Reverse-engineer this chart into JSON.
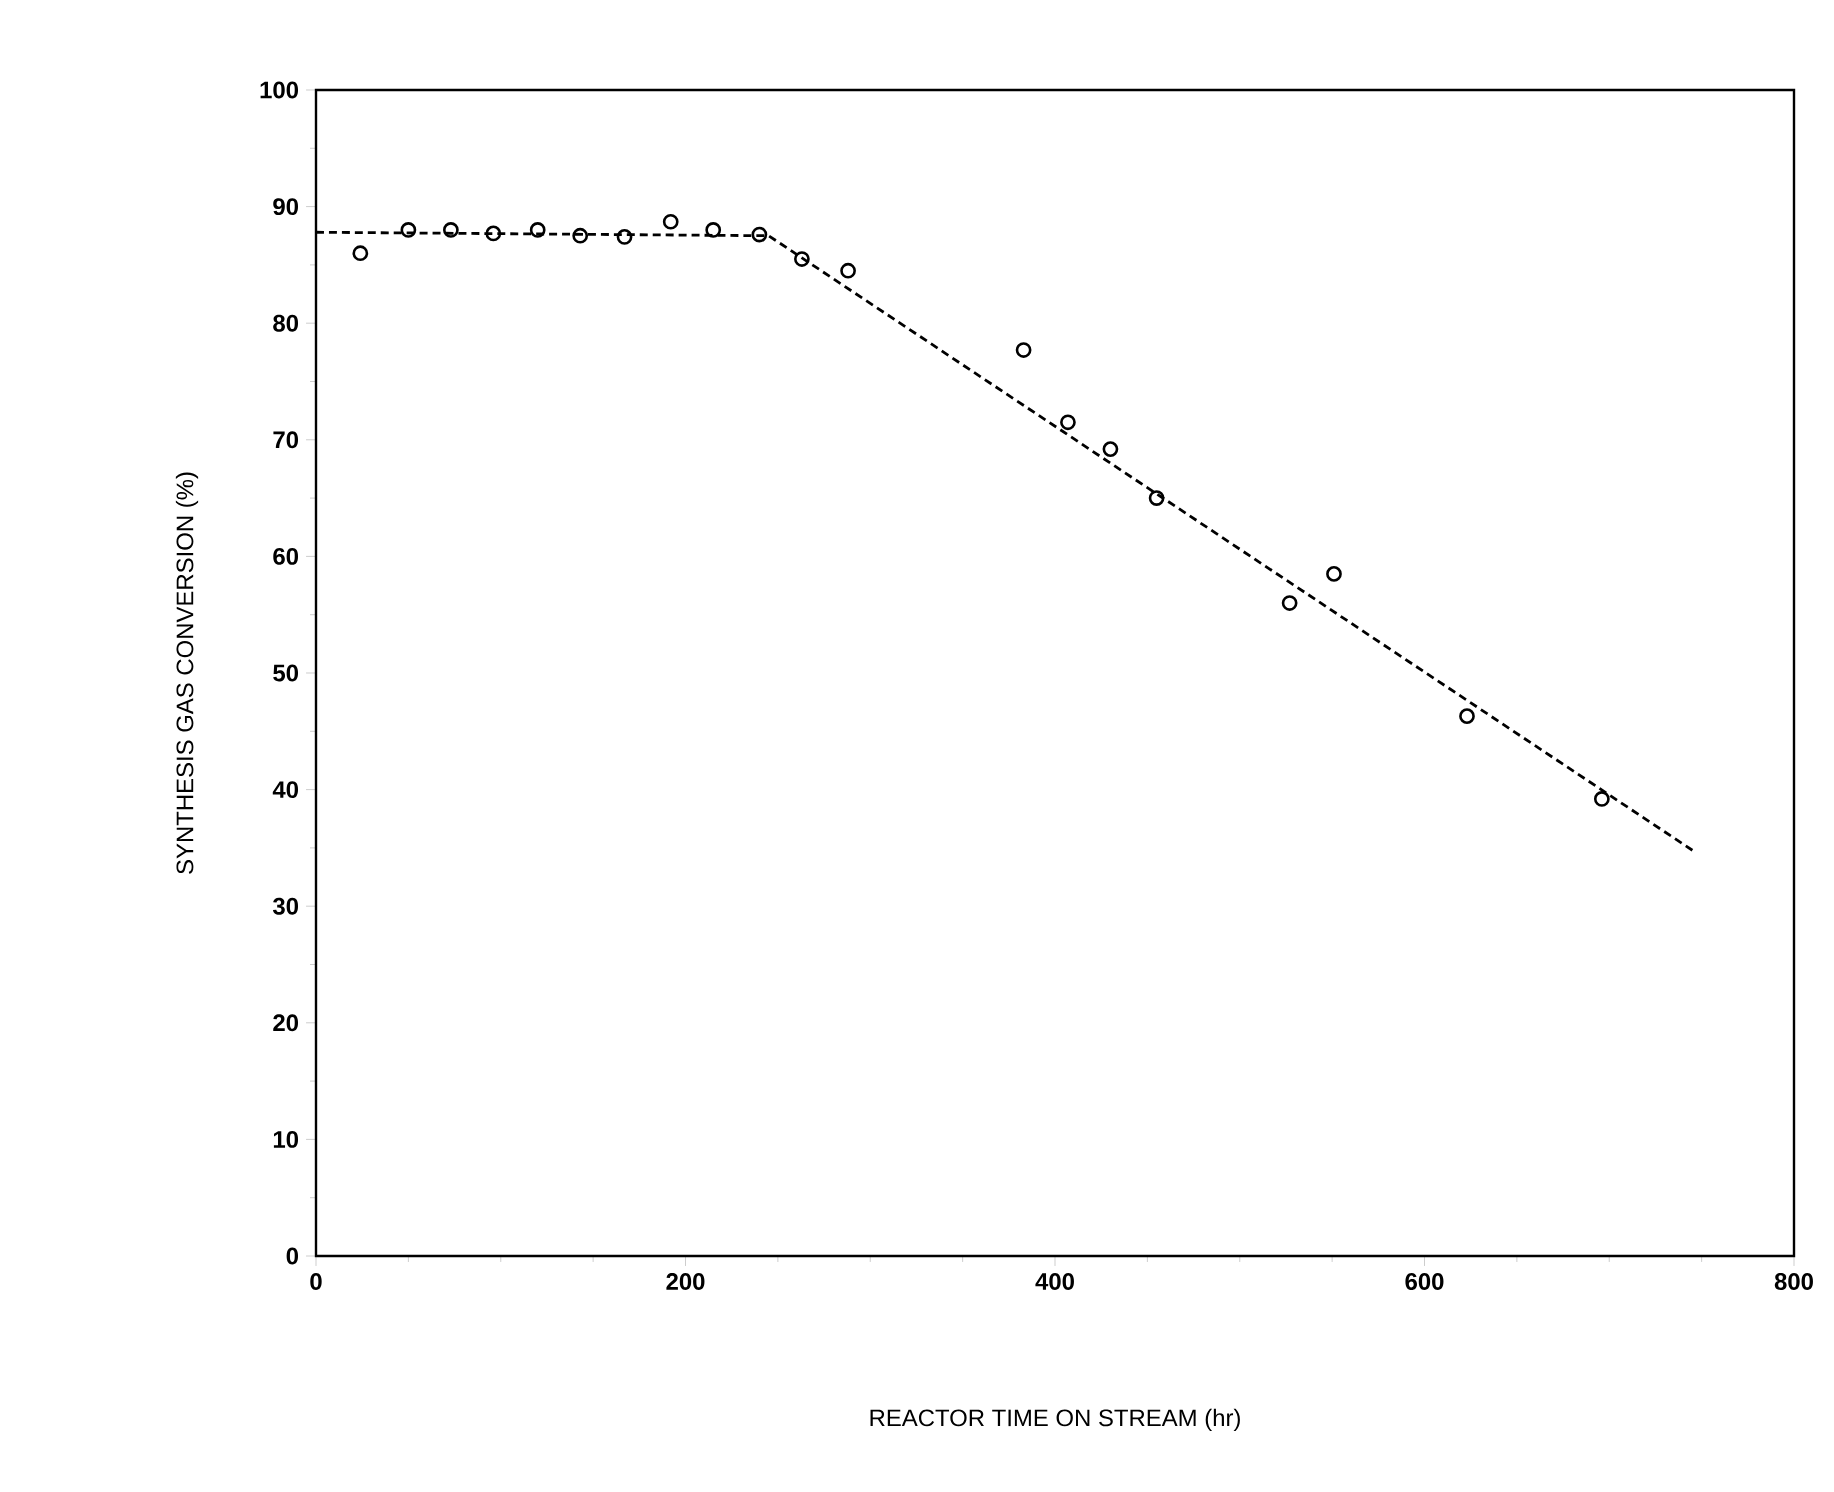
{
  "chart_data": {
    "type": "scatter",
    "xlabel": "REACTOR TIME ON STREAM (hr)",
    "ylabel": "SYNTHESIS GAS CONVERSION (%)",
    "xlim": [
      0,
      800
    ],
    "ylim": [
      0,
      100
    ],
    "xticks": [
      0,
      200,
      400,
      600,
      800
    ],
    "yticks": [
      0,
      10,
      20,
      30,
      40,
      50,
      60,
      70,
      80,
      90,
      100
    ],
    "series": [
      {
        "color": "#000000",
        "marker": "circle",
        "x": [
          24,
          50,
          73,
          96,
          120,
          143,
          167,
          192,
          215,
          240,
          263,
          288,
          383,
          407,
          430,
          455,
          527,
          551,
          623,
          696
        ],
        "values": [
          86,
          88,
          88,
          87.7,
          88,
          87.5,
          87.4,
          88.7,
          88,
          87.6,
          85.5,
          84.5,
          77.7,
          71.5,
          69.2,
          65,
          56,
          58.5,
          46.3,
          39.2
        ]
      },
      {
        "type": "line",
        "color": "#000000",
        "line_style": "dashed",
        "marker": "none",
        "x": [
          0,
          245,
          745
        ],
        "values": [
          87.8,
          87.5,
          34.8
        ]
      }
    ]
  }
}
